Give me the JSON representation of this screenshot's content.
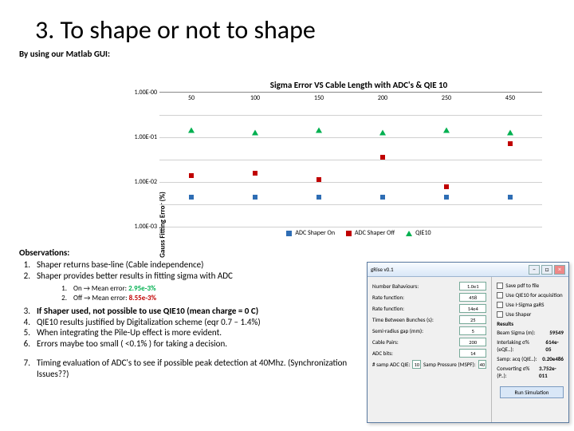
{
  "title": "3. To shape or not to shape",
  "subtitle": "By using our Matlab GUI:",
  "chart": {
    "title": "Sigma Error VS Cable Length with ADC's & QIE 10",
    "ylabel": "Gauss Fitting Error (%)",
    "yticks": [
      "1.00E-00",
      "1.00E-01",
      "1.00E-02",
      "1.00E-03"
    ],
    "xticks": [
      "50",
      "100",
      "150",
      "200",
      "250",
      "450"
    ],
    "grid_positions_pct": [
      0,
      16.6,
      33.3,
      50,
      66.6,
      83.3,
      100
    ],
    "series": [
      {
        "name": "ADC Shaper On",
        "shape": "square",
        "color": "#2e6db4",
        "points": [
          {
            "x": 0,
            "y": 78
          },
          {
            "x": 1,
            "y": 78
          },
          {
            "x": 2,
            "y": 78
          },
          {
            "x": 3,
            "y": 78
          },
          {
            "x": 4,
            "y": 78
          },
          {
            "x": 5,
            "y": 78
          }
        ]
      },
      {
        "name": "ADC Shaper Off",
        "shape": "square",
        "color": "#c00000",
        "points": [
          {
            "x": 0,
            "y": 62
          },
          {
            "x": 1,
            "y": 60
          },
          {
            "x": 2,
            "y": 65
          },
          {
            "x": 3,
            "y": 48
          },
          {
            "x": 4,
            "y": 70
          },
          {
            "x": 5,
            "y": 38
          }
        ]
      },
      {
        "name": "QIE10",
        "shape": "triangle",
        "color": "#00b050",
        "points": [
          {
            "x": 0,
            "y": 28
          },
          {
            "x": 1,
            "y": 30
          },
          {
            "x": 2,
            "y": 28
          },
          {
            "x": 3,
            "y": 30
          },
          {
            "x": 4,
            "y": 28
          },
          {
            "x": 5,
            "y": 30
          }
        ]
      }
    ],
    "legend": [
      "ADC Shaper On",
      "ADC Shaper Off",
      "QIE10"
    ]
  },
  "obs": {
    "header": "Observations:",
    "items": [
      "Shaper returns base-line (Cable independence)",
      "Shaper provides better results in fitting sigma with ADC"
    ],
    "sub": {
      "on_label": "On → Mean error: ",
      "on_val": "2.95e-3%",
      "off_label": "Off → Mean error: ",
      "off_val": "8.55e-3%"
    },
    "items2": [
      {
        "n": "3.",
        "t": "If Shaper used, not possible to use QIE10 (mean charge = 0 C)",
        "b": true
      },
      {
        "n": "4.",
        "t": "QIE10 results justified by Digitalization scheme (eqr 0.7 – 1.4%)",
        "b": false
      },
      {
        "n": "5.",
        "t": "When integrating the Pile-Up effect is more evident.",
        "b": false
      },
      {
        "n": "6.",
        "t": "Errors maybe too small ( <0.1% ) for taking a decision.",
        "b": false
      }
    ],
    "item7": {
      "n": "7.",
      "t": "Timing evaluation of ADC's to see if possible peak detection at 40Mhz. (Synchronization Issues??)"
    }
  },
  "gui": {
    "wintitle": "gRise v0.1",
    "left_fields": [
      {
        "label": "Number Bahaviours:",
        "val": "1.0e1"
      },
      {
        "label": "Rate function:",
        "val": "458"
      },
      {
        "label": "Rate function:",
        "val": "14e4"
      },
      {
        "label": "Time Between Bunches (s):",
        "val": "25"
      },
      {
        "label": "Semi-radius gap (mm):",
        "val": "5"
      },
      {
        "label": "Cable Pairs:",
        "val": "200"
      },
      {
        "label": "ADC bits:",
        "val": "14"
      }
    ],
    "left_row2": [
      {
        "label": "# samp ADC QIE:",
        "val": "10"
      },
      {
        "label": "Samp Pressure (MSPF):",
        "val": "40"
      }
    ],
    "right_checks": [
      "Save pdf to file",
      "Use QIE10 for acquisition",
      "Use I-Sigma gaRS",
      "Use Shaper"
    ],
    "right_title": "Results",
    "right_vals": [
      {
        "label": "Beam Sigma (m):",
        "val": "59549"
      },
      {
        "label": "Interlaking σ% (eQE..):",
        "val": "614e-05"
      },
      {
        "label": "Samp: acq (QIE..):",
        "val": "0.20e486"
      },
      {
        "label": "Converting σ% (P..):",
        "val": "3.752e-011"
      }
    ],
    "run": "Run Simulation"
  }
}
